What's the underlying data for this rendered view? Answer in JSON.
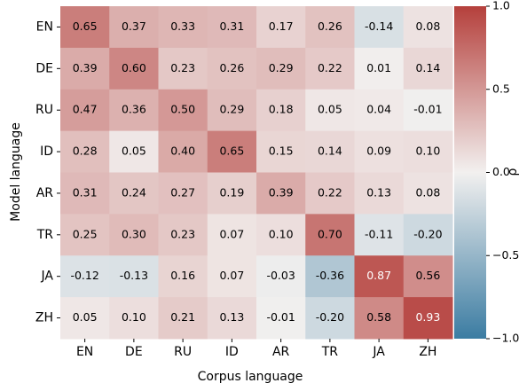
{
  "chart_data": {
    "type": "heatmap",
    "x_label": "Corpus language",
    "y_label": "Model language",
    "colorbar_label": "ρ",
    "categories": [
      "EN",
      "DE",
      "RU",
      "ID",
      "AR",
      "TR",
      "JA",
      "ZH"
    ],
    "y_categories": [
      "EN",
      "DE",
      "RU",
      "ID",
      "AR",
      "TR",
      "JA",
      "ZH"
    ],
    "values": [
      [
        0.65,
        0.37,
        0.33,
        0.31,
        0.17,
        0.26,
        -0.14,
        0.08
      ],
      [
        0.39,
        0.6,
        0.23,
        0.26,
        0.29,
        0.22,
        0.01,
        0.14
      ],
      [
        0.47,
        0.36,
        0.5,
        0.29,
        0.18,
        0.05,
        0.04,
        -0.01
      ],
      [
        0.28,
        0.05,
        0.4,
        0.65,
        0.15,
        0.14,
        0.09,
        0.1
      ],
      [
        0.31,
        0.24,
        0.27,
        0.19,
        0.39,
        0.22,
        0.13,
        0.08
      ],
      [
        0.25,
        0.3,
        0.23,
        0.07,
        0.1,
        0.7,
        -0.11,
        -0.2
      ],
      [
        -0.12,
        -0.13,
        0.16,
        0.07,
        -0.03,
        -0.36,
        0.87,
        0.56
      ],
      [
        0.05,
        0.1,
        0.21,
        0.13,
        -0.01,
        -0.2,
        0.58,
        0.93
      ]
    ],
    "value_labels": [
      [
        "0.65",
        "0.37",
        "0.33",
        "0.31",
        "0.17",
        "0.26",
        "-0.14",
        "0.08"
      ],
      [
        "0.39",
        "0.60",
        "0.23",
        "0.26",
        "0.29",
        "0.22",
        "0.01",
        "0.14"
      ],
      [
        "0.47",
        "0.36",
        "0.50",
        "0.29",
        "0.18",
        "0.05",
        "0.04",
        "-0.01"
      ],
      [
        "0.28",
        "0.05",
        "0.40",
        "0.65",
        "0.15",
        "0.14",
        "0.09",
        "0.10"
      ],
      [
        "0.31",
        "0.24",
        "0.27",
        "0.19",
        "0.39",
        "0.22",
        "0.13",
        "0.08"
      ],
      [
        "0.25",
        "0.30",
        "0.23",
        "0.07",
        "0.10",
        "0.70",
        "-0.11",
        "-0.20"
      ],
      [
        "-0.12",
        "-0.13",
        "0.16",
        "0.07",
        "-0.03",
        "-0.36",
        "0.87",
        "0.56"
      ],
      [
        "0.05",
        "0.10",
        "0.21",
        "0.13",
        "-0.01",
        "-0.20",
        "0.58",
        "0.93"
      ]
    ],
    "zlim": [
      -1,
      1
    ],
    "zticks": [
      {
        "value": 1,
        "label": "1.0"
      },
      0.5,
      {
        "value": 0,
        "label": "0.0"
      },
      {
        "value": -0.5,
        "label": "−0.5"
      },
      {
        "value": -1,
        "label": "−1.0"
      }
    ],
    "colormap": [
      "#3b7ca2",
      "#f2f0ef",
      "#b5403c"
    ]
  }
}
